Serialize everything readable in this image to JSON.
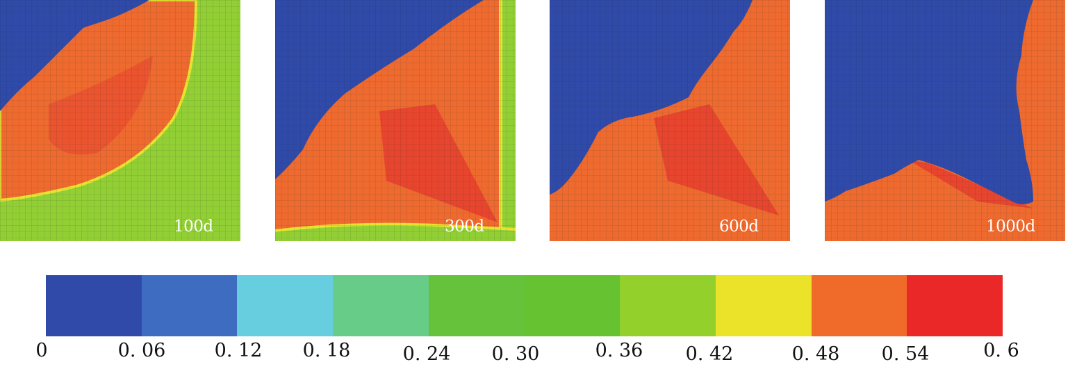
{
  "panels": [
    {
      "label": "100d"
    },
    {
      "label": "300d"
    },
    {
      "label": "600d"
    },
    {
      "label": "1000d"
    }
  ],
  "colorbar": {
    "colors": [
      "#2f4aa8",
      "#3d6cc0",
      "#66cede",
      "#66cc88",
      "#66c23a",
      "#66c230",
      "#93d02c",
      "#ebe22a",
      "#f06a2a",
      "#ea2828"
    ],
    "ticks": [
      "0",
      "0. 06",
      "0. 12",
      "0. 18",
      "0. 24",
      "0. 30",
      "0. 36",
      "0. 42",
      "0. 48",
      "0. 54",
      "0. 6"
    ]
  },
  "colors": {
    "blue": "#2f4aa8",
    "green": "#92cf34",
    "orange": "#ee6a2e",
    "red": "#e43a2e",
    "yellow": "#e8e230"
  }
}
